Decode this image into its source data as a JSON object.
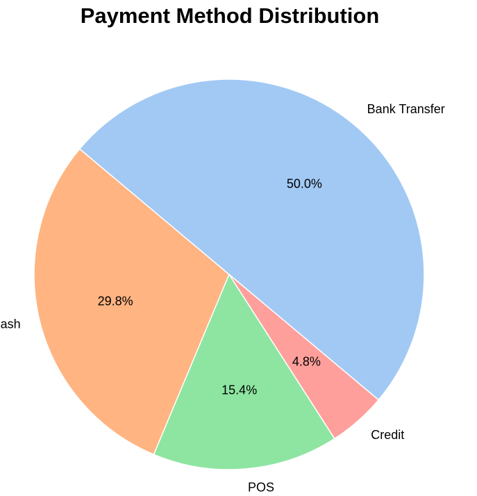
{
  "chart_data": {
    "type": "pie",
    "title": "Payment Method Distribution",
    "start_angle_deg": 140,
    "direction": "counterclockwise",
    "slices": [
      {
        "label": "Cash",
        "value": 29.8,
        "pct_label": "29.8%",
        "color": "#ffb482"
      },
      {
        "label": "POS",
        "value": 15.4,
        "pct_label": "15.4%",
        "color": "#8de5a1"
      },
      {
        "label": "Credit",
        "value": 4.8,
        "pct_label": "4.8%",
        "color": "#ff9f9b"
      },
      {
        "label": "Bank Transfer",
        "value": 50.0,
        "pct_label": "50.0%",
        "color": "#a1c9f4"
      }
    ]
  }
}
